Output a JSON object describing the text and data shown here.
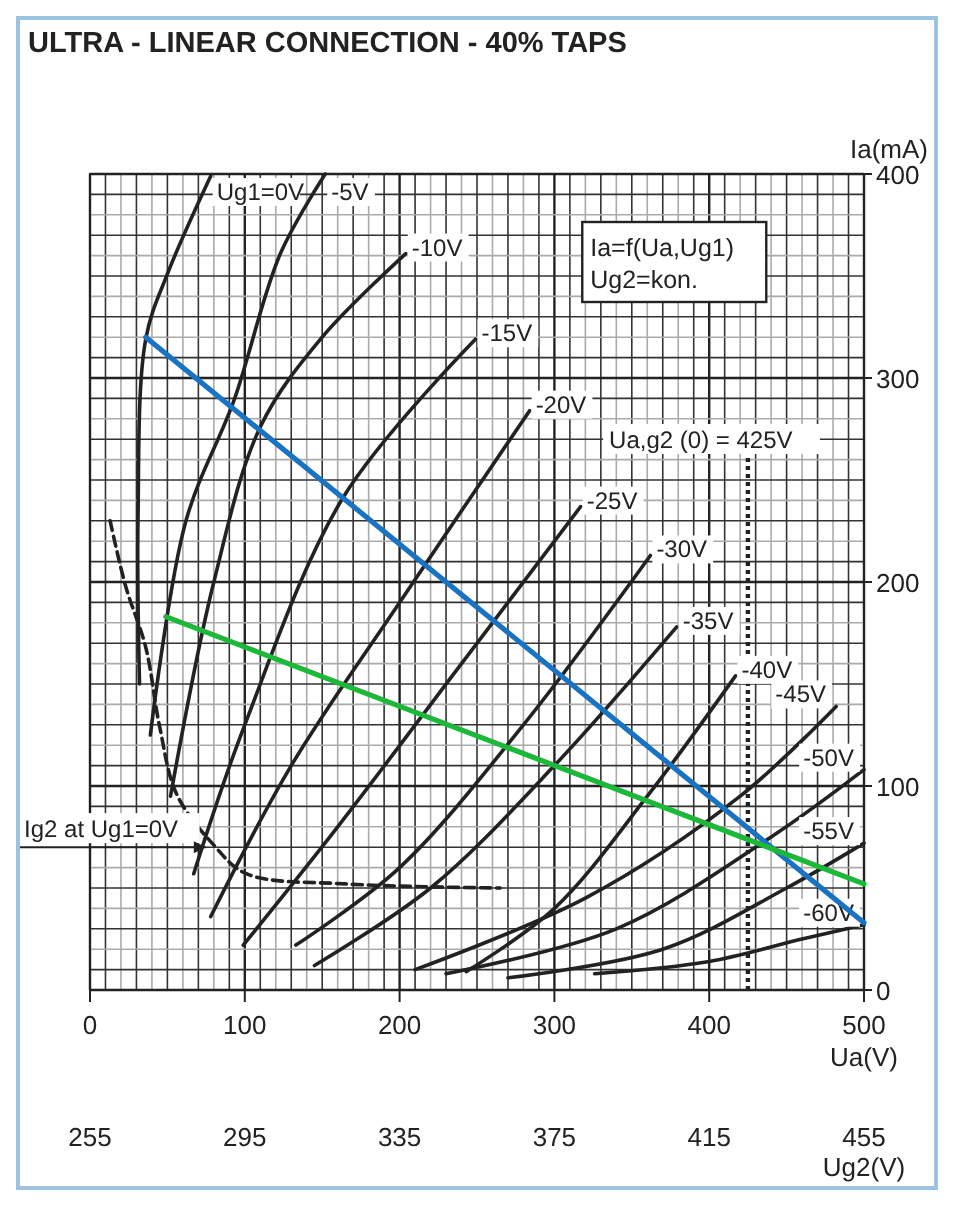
{
  "chart_data": {
    "type": "line",
    "title": "ULTRA - LINEAR CONNECTION - 40% TAPS",
    "xlabel": "Ua(V)",
    "ylabel": "Ia(mA)",
    "x2label": "Ug2(V)",
    "xlim": [
      0,
      500
    ],
    "ylim": [
      0,
      400
    ],
    "x2lim": [
      255,
      455
    ],
    "xticks": [
      0,
      {
        "value": 10,
        "label": null
      },
      {
        "value": 20,
        "label": null
      },
      {
        "value": 30,
        "label": null
      },
      {
        "value": 40,
        "label": null
      },
      {
        "value": 50,
        "label": null
      },
      {
        "value": 60,
        "label": null
      },
      {
        "value": 70,
        "label": null
      },
      {
        "value": 80,
        "label": null
      },
      {
        "value": 90,
        "label": null
      },
      100,
      {
        "value": 110,
        "label": null
      },
      {
        "value": 120,
        "label": null
      },
      {
        "value": 130,
        "label": null
      },
      {
        "value": 140,
        "label": null
      },
      {
        "value": 150,
        "label": null
      },
      {
        "value": 160,
        "label": null
      },
      {
        "value": 170,
        "label": null
      },
      {
        "value": 180,
        "label": null
      },
      {
        "value": 190,
        "label": null
      },
      200,
      {
        "value": 210,
        "label": null
      },
      {
        "value": 220,
        "label": null
      },
      {
        "value": 230,
        "label": null
      },
      {
        "value": 240,
        "label": null
      },
      {
        "value": 250,
        "label": null
      },
      {
        "value": 260,
        "label": null
      },
      {
        "value": 270,
        "label": null
      },
      {
        "value": 280,
        "label": null
      },
      {
        "value": 290,
        "label": null
      },
      300,
      {
        "value": 310,
        "label": null
      },
      {
        "value": 320,
        "label": null
      },
      {
        "value": 330,
        "label": null
      },
      {
        "value": 340,
        "label": null
      },
      {
        "value": 350,
        "label": null
      },
      {
        "value": 360,
        "label": null
      },
      {
        "value": 370,
        "label": null
      },
      {
        "value": 380,
        "label": null
      },
      {
        "value": 390,
        "label": null
      },
      400,
      {
        "value": 410,
        "label": null
      },
      {
        "value": 420,
        "label": null
      },
      {
        "value": 430,
        "label": null
      },
      {
        "value": 440,
        "label": null
      },
      {
        "value": 450,
        "label": null
      },
      {
        "value": 460,
        "label": null
      },
      {
        "value": 470,
        "label": null
      },
      {
        "value": 480,
        "label": null
      },
      {
        "value": 490,
        "label": null
      },
      500
    ],
    "yticks": [
      0,
      {
        "value": 10,
        "label": null
      },
      {
        "value": 20,
        "label": null
      },
      {
        "value": 30,
        "label": null
      },
      {
        "value": 40,
        "label": null
      },
      {
        "value": 50,
        "label": null
      },
      {
        "value": 60,
        "label": null
      },
      {
        "value": 70,
        "label": null
      },
      {
        "value": 80,
        "label": null
      },
      {
        "value": 90,
        "label": null
      },
      100,
      {
        "value": 110,
        "label": null
      },
      {
        "value": 120,
        "label": null
      },
      {
        "value": 130,
        "label": null
      },
      {
        "value": 140,
        "label": null
      },
      {
        "value": 150,
        "label": null
      },
      {
        "value": 160,
        "label": null
      },
      {
        "value": 170,
        "label": null
      },
      {
        "value": 180,
        "label": null
      },
      {
        "value": 190,
        "label": null
      },
      200,
      {
        "value": 210,
        "label": null
      },
      {
        "value": 220,
        "label": null
      },
      {
        "value": 230,
        "label": null
      },
      {
        "value": 240,
        "label": null
      },
      {
        "value": 250,
        "label": null
      },
      {
        "value": 260,
        "label": null
      },
      {
        "value": 270,
        "label": null
      },
      {
        "value": 280,
        "label": null
      },
      {
        "value": 290,
        "label": null
      },
      300,
      {
        "value": 310,
        "label": null
      },
      {
        "value": 320,
        "label": null
      },
      {
        "value": 330,
        "label": null
      },
      {
        "value": 340,
        "label": null
      },
      {
        "value": 350,
        "label": null
      },
      {
        "value": 360,
        "label": null
      },
      {
        "value": 370,
        "label": null
      },
      {
        "value": 380,
        "label": null
      },
      {
        "value": 390,
        "label": null
      },
      400
    ],
    "x2ticks": [
      255,
      295,
      335,
      375,
      415,
      455
    ],
    "grid": true,
    "marker": "none",
    "line_style": "solid",
    "series": [
      {
        "name": "Ug1=0V",
        "color": "#222222",
        "x": [
          32,
          31,
          36,
          50,
          78
        ],
        "values": [
          150,
          230,
          319,
          351,
          399
        ]
      },
      {
        "name": "-5V",
        "color": "#222222",
        "x": [
          39,
          62,
          93,
          123,
          152
        ],
        "values": [
          125,
          230,
          289,
          361,
          400
        ]
      },
      {
        "name": "-10V",
        "color": "#222222",
        "x": [
          52,
          80,
          110,
          150,
          204
        ],
        "values": [
          95,
          200,
          276,
          320,
          361
        ]
      },
      {
        "name": "-15V",
        "color": "#222222",
        "x": [
          67,
          100,
          164,
          249
        ],
        "values": [
          57,
          130,
          242,
          319
        ]
      },
      {
        "name": "-20V",
        "color": "#222222",
        "x": [
          78,
          130,
          200,
          284
        ],
        "values": [
          36,
          110,
          190,
          284
        ]
      },
      {
        "name": "-25V",
        "color": "#222222",
        "x": [
          99,
          160,
          240,
          317
        ],
        "values": [
          22,
          80,
          160,
          237
        ]
      },
      {
        "name": "-30V",
        "color": "#222222",
        "x": [
          133,
          200,
          280,
          362
        ],
        "values": [
          22,
          60,
          130,
          213
        ]
      },
      {
        "name": "-35V",
        "color": "#222222",
        "x": [
          145,
          220,
          300,
          379
        ],
        "values": [
          12,
          50,
          110,
          178
        ]
      },
      {
        "name": "-40V",
        "color": "#222222",
        "x": [
          243,
          300,
          360,
          417
        ],
        "values": [
          9,
          40,
          95,
          154
        ]
      },
      {
        "name": "-45V",
        "color": "#222222",
        "x": [
          210,
          320,
          420,
          482
        ],
        "values": [
          10,
          45,
          95,
          139
        ]
      },
      {
        "name": "-50V",
        "color": "#222222",
        "x": [
          230,
          340,
          440,
          500
        ],
        "values": [
          8,
          30,
          75,
          108
        ]
      },
      {
        "name": "-55V",
        "color": "#222222",
        "x": [
          270,
          370,
          450,
          500
        ],
        "values": [
          6,
          20,
          50,
          72
        ]
      },
      {
        "name": "-60V",
        "color": "#222222",
        "x": [
          326,
          400,
          460,
          500
        ],
        "values": [
          8,
          14,
          25,
          32
        ]
      },
      {
        "color": "#1a73c0",
        "x": [
          36,
          500
        ],
        "values": [
          320,
          33
        ]
      },
      {
        "color": "#1db83a",
        "x": [
          49,
          500
        ],
        "values": [
          183,
          52
        ]
      },
      {
        "color": "#222222",
        "line_style": "dashed",
        "x": [
          13,
          23,
          36,
          45,
          56,
          80,
          101,
          165,
          265
        ],
        "values": [
          230,
          198,
          168,
          129,
          96,
          71,
          57,
          52,
          50
        ]
      }
    ],
    "ref_lines": [
      {
        "axis": "x",
        "value": 425,
        "label": "Ua,g2 (0) = 425V",
        "line_style": "dotted",
        "color": "#222222"
      }
    ],
    "annotations": [
      {
        "text": "Ig2 at Ug1=0V",
        "x": 80,
        "y": 71
      },
      "Ia=f(Ua,Ug1)",
      "Ug2=kon."
    ]
  }
}
